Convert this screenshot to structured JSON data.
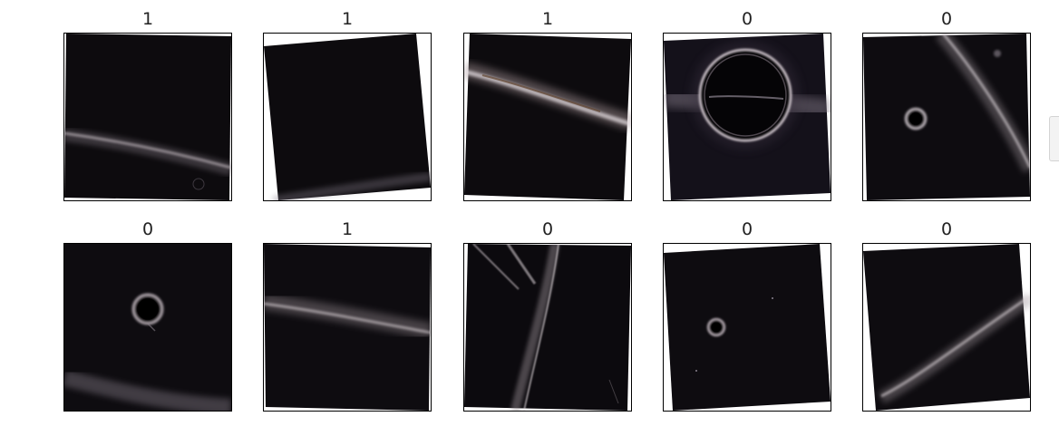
{
  "panels": [
    {
      "label": "1",
      "image": "night-sky-galaxy-band-low"
    },
    {
      "label": "1",
      "image": "night-sky-faint-band-corner"
    },
    {
      "label": "1",
      "image": "night-sky-bright-band-top"
    },
    {
      "label": "0",
      "image": "black-hole-einstein-ring-large"
    },
    {
      "label": "0",
      "image": "black-hole-small-ring-diagonal-band"
    },
    {
      "label": "0",
      "image": "black-hole-ring-center"
    },
    {
      "label": "1",
      "image": "night-sky-galaxy-band-middle"
    },
    {
      "label": "0",
      "image": "black-hole-lensed-streaks"
    },
    {
      "label": "0",
      "image": "black-hole-tiny-ring"
    },
    {
      "label": "0",
      "image": "black-hole-curved-band"
    }
  ],
  "colors": {
    "background": "#ffffff",
    "frame": "#000000",
    "sky": "#0d0b0e",
    "band": "#c9c3c8"
  }
}
